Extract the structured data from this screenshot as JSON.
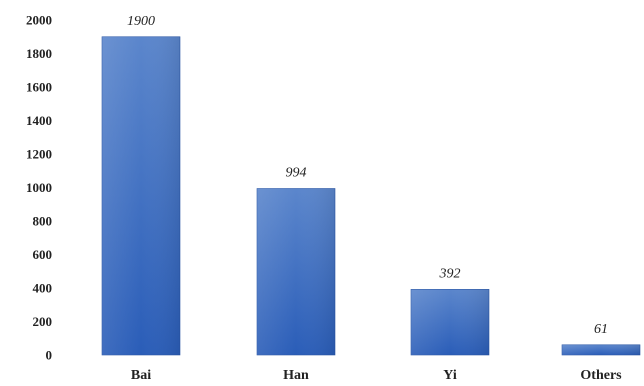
{
  "chart_data": {
    "type": "bar",
    "categories": [
      "Bai",
      "Han",
      "Yi",
      "Others"
    ],
    "values": [
      1900,
      994,
      392,
      61
    ],
    "data_labels": [
      "1900",
      "994",
      "392",
      "61"
    ],
    "yticks": [
      "0",
      "200",
      "400",
      "600",
      "800",
      "1000",
      "1200",
      "1400",
      "1600",
      "1800",
      "2000"
    ],
    "ylim": [
      0,
      2000
    ],
    "grid": false,
    "legend": "none",
    "title": "",
    "xlabel": "",
    "ylabel": "",
    "colors": {
      "bar_top": "#5b86cc",
      "bar_bottom": "#2a5db8",
      "bar_edge": "#2a56a5"
    }
  }
}
